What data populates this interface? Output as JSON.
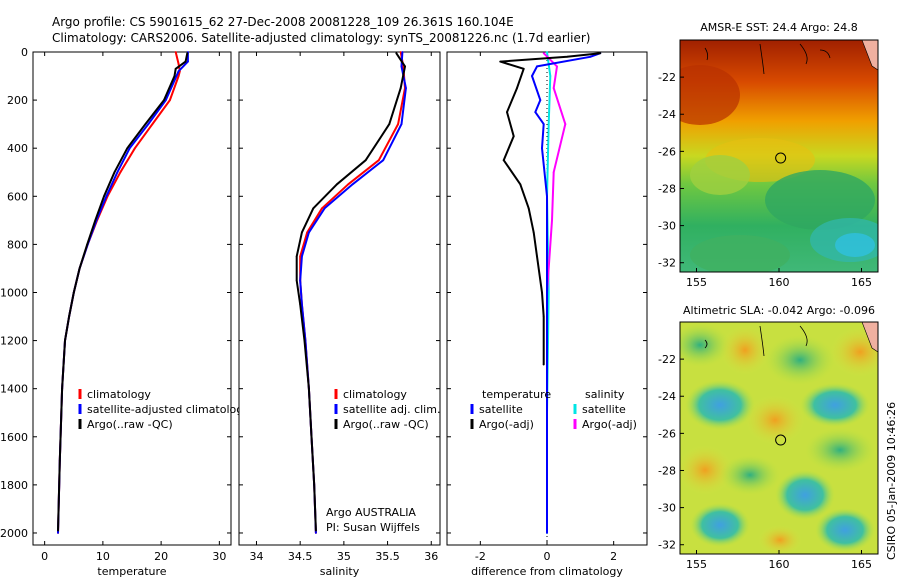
{
  "header": {
    "line1": "Argo profile: CS 5901615_62 27-Dec-2008 20081228_109 26.361S 160.104E",
    "line2": "Climatology: CARS2006. Satellite-adjusted climatology: synTS_20081226.nc (1.7d earlier)"
  },
  "footer": {
    "stamp": "CSIRO 05-Jan-2009 10:46:26",
    "agency": "Argo AUSTRALIA",
    "pi": "PI: Susan Wijffels"
  },
  "colors": {
    "climatology": "#ff0000",
    "satellite": "#0000ff",
    "argo": "#000000",
    "salinity_satellite": "#00e5e5",
    "salinity_argo": "#ff00ff"
  },
  "chart_data": [
    {
      "type": "line",
      "xlabel": "temperature",
      "ylabel": "",
      "xlim": [
        -2,
        32
      ],
      "ylim": [
        2050,
        0
      ],
      "xticks": [
        0,
        10,
        20,
        30
      ],
      "yticks": [
        0,
        200,
        400,
        600,
        800,
        1000,
        1200,
        1400,
        1600,
        1800,
        2000
      ],
      "legend": [
        "climatology",
        "satellite-adjusted climatology",
        "Argo(..raw -QC)"
      ],
      "series": [
        {
          "name": "climatology",
          "color": "#ff0000",
          "x": [
            22.5,
            23.0,
            23.2,
            23.0,
            21.5,
            18.5,
            15.5,
            13.0,
            10.8,
            9.0,
            7.4,
            6.0,
            5.0,
            4.2,
            3.5,
            3.0,
            2.6,
            2.3
          ],
          "y": [
            0,
            50,
            80,
            100,
            200,
            300,
            400,
            500,
            600,
            700,
            800,
            900,
            1000,
            1100,
            1200,
            1400,
            1700,
            2000
          ]
        },
        {
          "name": "satellite-adjusted climatology",
          "color": "#0000ff",
          "x": [
            24.6,
            24.6,
            23.0,
            20.8,
            17.8,
            14.6,
            12.5,
            10.6,
            8.9,
            7.4,
            6.0,
            5.0,
            4.2,
            3.5,
            3.0,
            2.6,
            2.3
          ],
          "y": [
            0,
            40,
            80,
            200,
            300,
            400,
            500,
            600,
            700,
            800,
            900,
            1000,
            1100,
            1200,
            1400,
            1700,
            2000
          ]
        },
        {
          "name": "Argo(..raw -QC)",
          "color": "#000000",
          "x": [
            24.5,
            24.2,
            22.5,
            22.3,
            20.5,
            17.3,
            14.2,
            12.0,
            10.2,
            8.7,
            7.3,
            6.0,
            5.0,
            4.2,
            3.5,
            3.0,
            2.6,
            2.3
          ],
          "y": [
            5,
            40,
            70,
            100,
            200,
            300,
            400,
            500,
            600,
            700,
            800,
            900,
            1000,
            1100,
            1200,
            1400,
            1700,
            1990
          ]
        }
      ]
    },
    {
      "type": "line",
      "xlabel": "salinity",
      "xlim": [
        33.8,
        36.1
      ],
      "ylim": [
        2050,
        0
      ],
      "xticks": [
        34,
        34.5,
        35,
        35.5,
        36
      ],
      "legend": [
        "climatology",
        "satellite adj. clim.",
        "Argo(..raw -QC)"
      ],
      "series": [
        {
          "name": "climatology",
          "color": "#ff0000",
          "x": [
            35.65,
            35.68,
            35.7,
            35.62,
            35.4,
            35.05,
            34.75,
            34.58,
            34.5,
            34.5,
            34.52,
            34.56,
            34.6,
            34.63,
            34.66,
            34.68
          ],
          "y": [
            0,
            60,
            150,
            300,
            450,
            550,
            650,
            750,
            850,
            950,
            1050,
            1200,
            1400,
            1600,
            1800,
            2000
          ]
        },
        {
          "name": "satellite adj. clim.",
          "color": "#0000ff",
          "x": [
            35.67,
            35.66,
            35.71,
            35.66,
            35.45,
            35.1,
            34.78,
            34.6,
            34.52,
            34.5,
            34.52,
            34.56,
            34.6,
            34.63,
            34.66,
            34.68
          ],
          "y": [
            0,
            60,
            150,
            300,
            450,
            550,
            650,
            750,
            850,
            950,
            1050,
            1200,
            1400,
            1600,
            1800,
            2000
          ]
        },
        {
          "name": "Argo(..raw -QC)",
          "color": "#000000",
          "x": [
            35.6,
            35.7,
            35.65,
            35.52,
            35.25,
            34.92,
            34.65,
            34.52,
            34.46,
            34.46,
            34.5,
            34.55,
            34.6,
            34.63,
            34.66,
            34.68
          ],
          "y": [
            5,
            60,
            150,
            300,
            450,
            550,
            650,
            750,
            850,
            950,
            1050,
            1200,
            1400,
            1600,
            1800,
            1990
          ]
        }
      ]
    },
    {
      "type": "line",
      "xlabel": "difference from climatology",
      "xlim": [
        -3,
        3
      ],
      "ylim": [
        2050,
        0
      ],
      "xticks": [
        -2,
        0,
        2
      ],
      "legend": [
        "temperature",
        "satellite",
        "Argo(-adj)",
        "salinity",
        "satellite",
        "Argo(-adj)"
      ],
      "series": [
        {
          "name": "satellite",
          "color": "#0000ff",
          "x": [
            1.6,
            1.3,
            -0.3,
            -0.45,
            -0.2,
            -0.35,
            -0.1,
            -0.15,
            0.0,
            0.0,
            0.0
          ],
          "y": [
            5,
            20,
            60,
            100,
            200,
            250,
            300,
            400,
            600,
            1000,
            2000
          ]
        },
        {
          "name": "Argo(-adj)",
          "color": "#000000",
          "x": [
            1.6,
            0.6,
            -1.4,
            -0.7,
            -0.9,
            -1.2,
            -1.0,
            -1.3,
            -0.8,
            -0.55,
            -0.4,
            -0.3,
            -0.15,
            -0.1,
            -0.1
          ],
          "y": [
            5,
            20,
            40,
            70,
            150,
            250,
            350,
            450,
            550,
            650,
            750,
            850,
            1000,
            1100,
            1300
          ]
        },
        {
          "name": "satellite",
          "color": "#00e5e5",
          "x": [
            0.0,
            0.1,
            0.05,
            0.0,
            0.05,
            0.0,
            0.0
          ],
          "y": [
            0,
            100,
            300,
            600,
            1000,
            1500,
            2000
          ]
        },
        {
          "name": "Argo(-adj)",
          "color": "#ff00ff",
          "x": [
            -0.1,
            0.3,
            0.2,
            0.55,
            0.2,
            0.15,
            0.0,
            0.0
          ],
          "y": [
            5,
            60,
            150,
            300,
            500,
            700,
            1000,
            1300
          ]
        }
      ]
    }
  ],
  "maps": [
    {
      "title": "AMSR-E SST: 24.4  Argo: 24.8",
      "xticks": [
        155,
        160,
        165
      ],
      "yticks": [
        -22,
        -24,
        -26,
        -28,
        -30,
        -32
      ],
      "lon_range": [
        154.0,
        166.0
      ],
      "lat_range": [
        -32.5,
        -20.0
      ],
      "marker": {
        "lon": 160.1,
        "lat": -26.36
      }
    },
    {
      "title": "Altimetric SLA: -0.042  Argo: -0.096",
      "xticks": [
        155,
        160,
        165
      ],
      "yticks": [
        -22,
        -24,
        -26,
        -28,
        -30,
        -32
      ],
      "lon_range": [
        154.0,
        166.0
      ],
      "lat_range": [
        -32.5,
        -20.0
      ],
      "marker": {
        "lon": 160.1,
        "lat": -26.36
      }
    }
  ]
}
